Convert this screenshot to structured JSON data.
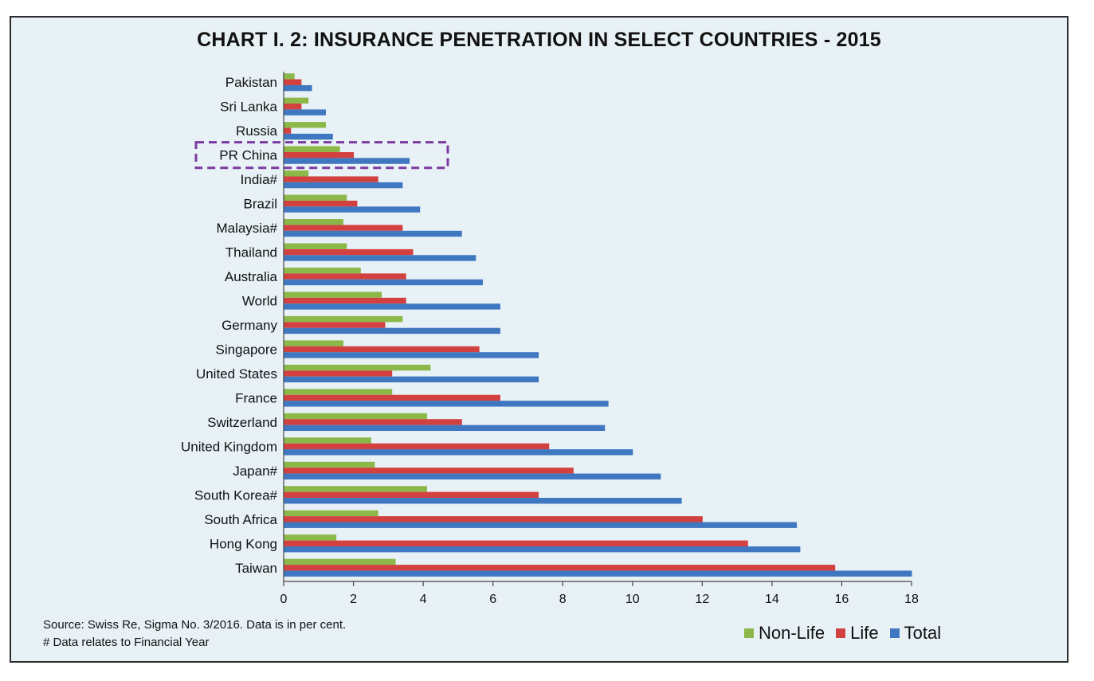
{
  "chart_data": {
    "type": "bar",
    "orientation": "horizontal",
    "title": "CHART I. 2: INSURANCE PENETRATION IN SELECT COUNTRIES - 2015",
    "categories": [
      "Pakistan",
      "Sri Lanka",
      "Russia",
      "PR China",
      "India#",
      "Brazil",
      "Malaysia#",
      "Thailand",
      "Australia",
      "World",
      "Germany",
      "Singapore",
      "United States",
      "France",
      "Switzerland",
      "United Kingdom",
      "Japan#",
      "South Korea#",
      "South Africa",
      "Hong Kong",
      "Taiwan"
    ],
    "series": [
      {
        "name": "Non-Life",
        "color": "#8cb84a",
        "values": [
          0.3,
          0.7,
          1.2,
          1.6,
          0.7,
          1.8,
          1.7,
          1.8,
          2.2,
          2.8,
          3.4,
          1.7,
          4.2,
          3.1,
          4.1,
          2.5,
          2.6,
          4.1,
          2.7,
          1.5,
          3.2
        ]
      },
      {
        "name": "Life",
        "color": "#d2413f",
        "values": [
          0.5,
          0.5,
          0.2,
          2.0,
          2.7,
          2.1,
          3.4,
          3.7,
          3.5,
          3.5,
          2.9,
          5.6,
          3.1,
          6.2,
          5.1,
          7.6,
          8.3,
          7.3,
          12.0,
          13.3,
          15.8
        ]
      },
      {
        "name": "Total",
        "color": "#3f78c1",
        "values": [
          0.8,
          1.2,
          1.4,
          3.6,
          3.4,
          3.9,
          5.1,
          5.5,
          5.7,
          6.2,
          6.2,
          7.3,
          7.3,
          9.3,
          9.2,
          10.0,
          10.8,
          11.4,
          14.7,
          14.8,
          18.0
        ]
      }
    ],
    "xlim": [
      0,
      18
    ],
    "xticks": [
      "0",
      "2",
      "4",
      "6",
      "8",
      "10",
      "12",
      "14",
      "16",
      "18"
    ],
    "highlighted_category": "PR China",
    "highlight_color": "#7b3aa0"
  },
  "footer": {
    "source_line": "Source: Swiss Re, Sigma No. 3/2016. Data is in per cent.",
    "note_line": "# Data relates to Financial Year"
  },
  "legend": {
    "items": [
      {
        "label": "Non-Life",
        "color": "#8cb84a"
      },
      {
        "label": "Life",
        "color": "#d2413f"
      },
      {
        "label": "Total",
        "color": "#3f78c1"
      }
    ]
  }
}
